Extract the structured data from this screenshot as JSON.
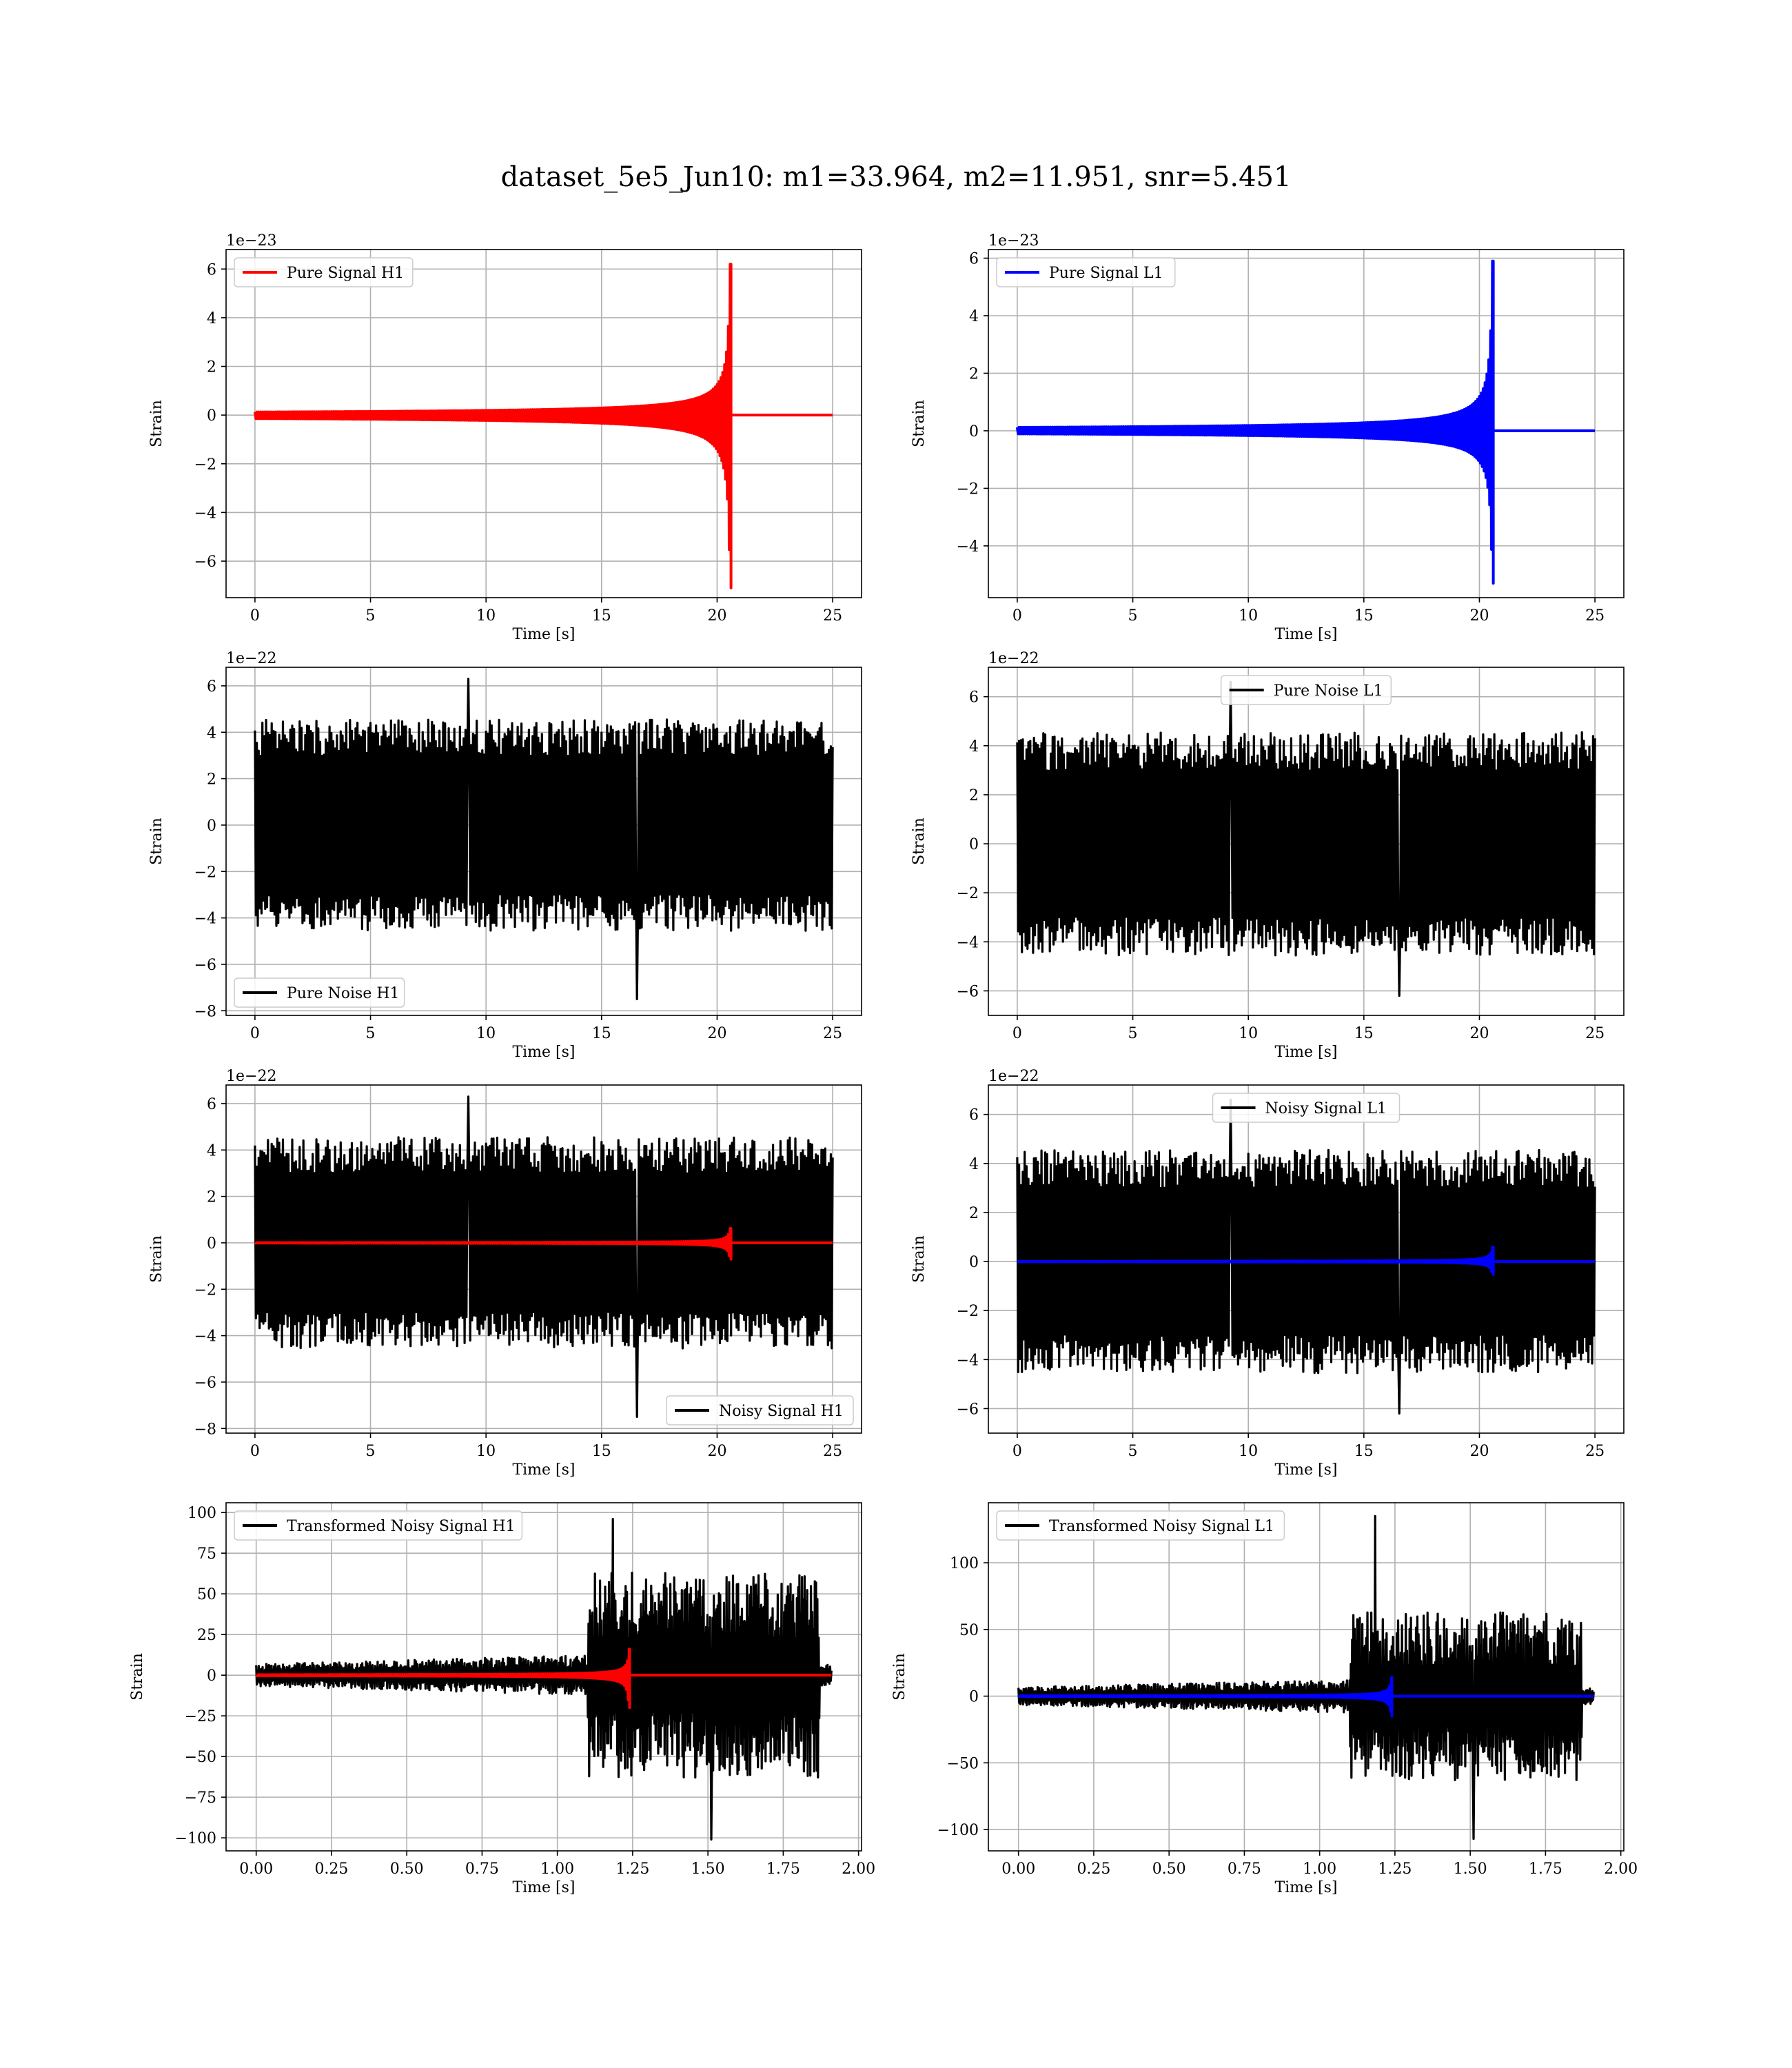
{
  "suptitle": "dataset_5e5_Jun10: m1=33.964, m2=11.951, snr=5.451",
  "colors": {
    "h1": "#ff0000",
    "l1": "#0000ff",
    "noise": "#000000",
    "grid": "#b0b0b0"
  },
  "chart_data": [
    {
      "type": "line",
      "id": "pure-signal-h1",
      "xlabel": "Time [s]",
      "ylabel": "Strain",
      "offset_text": "1e−23",
      "xlim": [
        -1.25,
        26.25
      ],
      "ylim": [
        -7.5,
        6.8
      ],
      "xticks": [
        0,
        5,
        10,
        15,
        20,
        25
      ],
      "xtick_labels": [
        "0",
        "5",
        "10",
        "15",
        "20",
        "25"
      ],
      "yticks": [
        -6,
        -4,
        -2,
        0,
        2,
        4,
        6
      ],
      "ytick_labels": [
        "−6",
        "−4",
        "−2",
        "0",
        "2",
        "4",
        "6"
      ],
      "legend": {
        "placement": "upper-left"
      },
      "series": [
        {
          "name": "Pure Signal H1",
          "color": "#ff0000",
          "kind": "chirp",
          "x_range": [
            0,
            25
          ],
          "merger_time": 20.6,
          "peak_pos": 6.2,
          "peak_neg": -7.1,
          "in_legend": true
        }
      ]
    },
    {
      "type": "line",
      "id": "pure-signal-l1",
      "xlabel": "Time [s]",
      "ylabel": "Strain",
      "offset_text": "1e−23",
      "xlim": [
        -1.25,
        26.25
      ],
      "ylim": [
        -5.8,
        6.3
      ],
      "xticks": [
        0,
        5,
        10,
        15,
        20,
        25
      ],
      "xtick_labels": [
        "0",
        "5",
        "10",
        "15",
        "20",
        "25"
      ],
      "yticks": [
        -4,
        -2,
        0,
        2,
        4,
        6
      ],
      "ytick_labels": [
        "−4",
        "−2",
        "0",
        "2",
        "4",
        "6"
      ],
      "legend": {
        "placement": "upper-left"
      },
      "series": [
        {
          "name": "Pure Signal L1",
          "color": "#0000ff",
          "kind": "chirp",
          "x_range": [
            0,
            25
          ],
          "merger_time": 20.6,
          "peak_pos": 5.9,
          "peak_neg": -5.3,
          "in_legend": true
        }
      ]
    },
    {
      "type": "line",
      "id": "pure-noise-h1",
      "xlabel": "Time [s]",
      "ylabel": "Strain",
      "offset_text": "1e−22",
      "xlim": [
        -1.25,
        26.25
      ],
      "ylim": [
        -8.2,
        6.8
      ],
      "xticks": [
        0,
        5,
        10,
        15,
        20,
        25
      ],
      "xtick_labels": [
        "0",
        "5",
        "10",
        "15",
        "20",
        "25"
      ],
      "yticks": [
        -8,
        -6,
        -4,
        -2,
        0,
        2,
        4,
        6
      ],
      "ytick_labels": [
        "−8",
        "−6",
        "−4",
        "−2",
        "0",
        "2",
        "4",
        "6"
      ],
      "legend": {
        "placement": "lower-left"
      },
      "series": [
        {
          "name": "Pure Noise H1",
          "color": "#000000",
          "kind": "noise",
          "x_range": [
            0,
            25
          ],
          "band": [
            -3.5,
            3.5
          ],
          "peak_pos": 6.3,
          "peak_neg": -7.5,
          "in_legend": true
        }
      ]
    },
    {
      "type": "line",
      "id": "pure-noise-l1",
      "xlabel": "Time [s]",
      "ylabel": "Strain",
      "offset_text": "1e−22",
      "xlim": [
        -1.25,
        26.25
      ],
      "ylim": [
        -7.0,
        7.2
      ],
      "xticks": [
        0,
        5,
        10,
        15,
        20,
        25
      ],
      "xtick_labels": [
        "0",
        "5",
        "10",
        "15",
        "20",
        "25"
      ],
      "yticks": [
        -6,
        -4,
        -2,
        0,
        2,
        4,
        6
      ],
      "ytick_labels": [
        "−6",
        "−4",
        "−2",
        "0",
        "2",
        "4",
        "6"
      ],
      "legend": {
        "placement": "upper-center"
      },
      "series": [
        {
          "name": "Pure Noise L1",
          "color": "#000000",
          "kind": "noise",
          "x_range": [
            0,
            25
          ],
          "band": [
            -3.5,
            3.5
          ],
          "peak_pos": 6.6,
          "peak_neg": -6.2,
          "in_legend": true
        }
      ]
    },
    {
      "type": "line",
      "id": "noisy-signal-h1",
      "xlabel": "Time [s]",
      "ylabel": "Strain",
      "offset_text": "1e−22",
      "xlim": [
        -1.25,
        26.25
      ],
      "ylim": [
        -8.2,
        6.8
      ],
      "xticks": [
        0,
        5,
        10,
        15,
        20,
        25
      ],
      "xtick_labels": [
        "0",
        "5",
        "10",
        "15",
        "20",
        "25"
      ],
      "yticks": [
        -8,
        -6,
        -4,
        -2,
        0,
        2,
        4,
        6
      ],
      "ytick_labels": [
        "−8",
        "−6",
        "−4",
        "−2",
        "0",
        "2",
        "4",
        "6"
      ],
      "legend": {
        "placement": "lower-right"
      },
      "series": [
        {
          "name": "Noisy Signal H1",
          "color": "#000000",
          "kind": "noise",
          "x_range": [
            0,
            25
          ],
          "band": [
            -3.5,
            3.5
          ],
          "peak_pos": 6.3,
          "peak_neg": -7.5,
          "in_legend": true
        },
        {
          "name": "",
          "color": "#ff0000",
          "kind": "chirp",
          "x_range": [
            0,
            25
          ],
          "merger_time": 20.6,
          "peak_pos": 0.62,
          "peak_neg": -0.71,
          "in_legend": false
        }
      ]
    },
    {
      "type": "line",
      "id": "noisy-signal-l1",
      "xlabel": "Time [s]",
      "ylabel": "Strain",
      "offset_text": "1e−22",
      "xlim": [
        -1.25,
        26.25
      ],
      "ylim": [
        -7.0,
        7.2
      ],
      "xticks": [
        0,
        5,
        10,
        15,
        20,
        25
      ],
      "xtick_labels": [
        "0",
        "5",
        "10",
        "15",
        "20",
        "25"
      ],
      "yticks": [
        -6,
        -4,
        -2,
        0,
        2,
        4,
        6
      ],
      "ytick_labels": [
        "−6",
        "−4",
        "−2",
        "0",
        "2",
        "4",
        "6"
      ],
      "legend": {
        "placement": "upper-center"
      },
      "series": [
        {
          "name": "Noisy Signal L1",
          "color": "#000000",
          "kind": "noise",
          "x_range": [
            0,
            25
          ],
          "band": [
            -3.5,
            3.5
          ],
          "peak_pos": 6.6,
          "peak_neg": -6.2,
          "in_legend": true
        },
        {
          "name": "",
          "color": "#0000ff",
          "kind": "chirp",
          "x_range": [
            0,
            25
          ],
          "merger_time": 20.6,
          "peak_pos": 0.59,
          "peak_neg": -0.53,
          "in_legend": false
        }
      ]
    },
    {
      "type": "line",
      "id": "transformed-noisy-signal-h1",
      "xlabel": "Time [s]",
      "ylabel": "Strain",
      "offset_text": "",
      "xlim": [
        -0.1,
        2.01
      ],
      "ylim": [
        -108,
        106
      ],
      "xticks": [
        0,
        0.25,
        0.5,
        0.75,
        1.0,
        1.25,
        1.5,
        1.75,
        2.0
      ],
      "xtick_labels": [
        "0.00",
        "0.25",
        "0.50",
        "0.75",
        "1.00",
        "1.25",
        "1.50",
        "1.75",
        "2.00"
      ],
      "yticks": [
        -100,
        -75,
        -50,
        -25,
        0,
        25,
        50,
        75,
        100
      ],
      "ytick_labels": [
        "−100",
        "−75",
        "−50",
        "−25",
        "0",
        "25",
        "50",
        "75",
        "100"
      ],
      "legend": {
        "placement": "upper-left"
      },
      "series": [
        {
          "name": "Transformed Noisy Signal H1",
          "color": "#000000",
          "kind": "whitened",
          "x_range": [
            0,
            1.91
          ],
          "cut_time": 1.87,
          "quiet_amp": 8,
          "loud_amp": 45,
          "burst_start": 1.1,
          "peak_pos": 96,
          "peak_neg": -101,
          "in_legend": true
        },
        {
          "name": "",
          "color": "#ff0000",
          "kind": "chirp",
          "x_range": [
            0,
            1.91
          ],
          "merger_time": 1.24,
          "peak_pos": 16,
          "peak_neg": -20,
          "in_legend": false
        }
      ]
    },
    {
      "type": "line",
      "id": "transformed-noisy-signal-l1",
      "xlabel": "Time [s]",
      "ylabel": "Strain",
      "offset_text": "",
      "xlim": [
        -0.1,
        2.01
      ],
      "ylim": [
        -116,
        145
      ],
      "xticks": [
        0,
        0.25,
        0.5,
        0.75,
        1.0,
        1.25,
        1.5,
        1.75,
        2.0
      ],
      "xtick_labels": [
        "0.00",
        "0.25",
        "0.50",
        "0.75",
        "1.00",
        "1.25",
        "1.50",
        "1.75",
        "2.00"
      ],
      "yticks": [
        -100,
        -50,
        0,
        50,
        100
      ],
      "ytick_labels": [
        "−100",
        "−50",
        "0",
        "50",
        "100"
      ],
      "legend": {
        "placement": "upper-left"
      },
      "series": [
        {
          "name": "Transformed Noisy Signal L1",
          "color": "#000000",
          "kind": "whitened",
          "x_range": [
            0,
            1.91
          ],
          "cut_time": 1.87,
          "quiet_amp": 8,
          "loud_amp": 45,
          "burst_start": 1.1,
          "peak_pos": 135,
          "peak_neg": -107,
          "in_legend": true
        },
        {
          "name": "",
          "color": "#0000ff",
          "kind": "chirp",
          "x_range": [
            0,
            1.91
          ],
          "merger_time": 1.24,
          "peak_pos": 14,
          "peak_neg": -15,
          "in_legend": false
        }
      ]
    }
  ]
}
